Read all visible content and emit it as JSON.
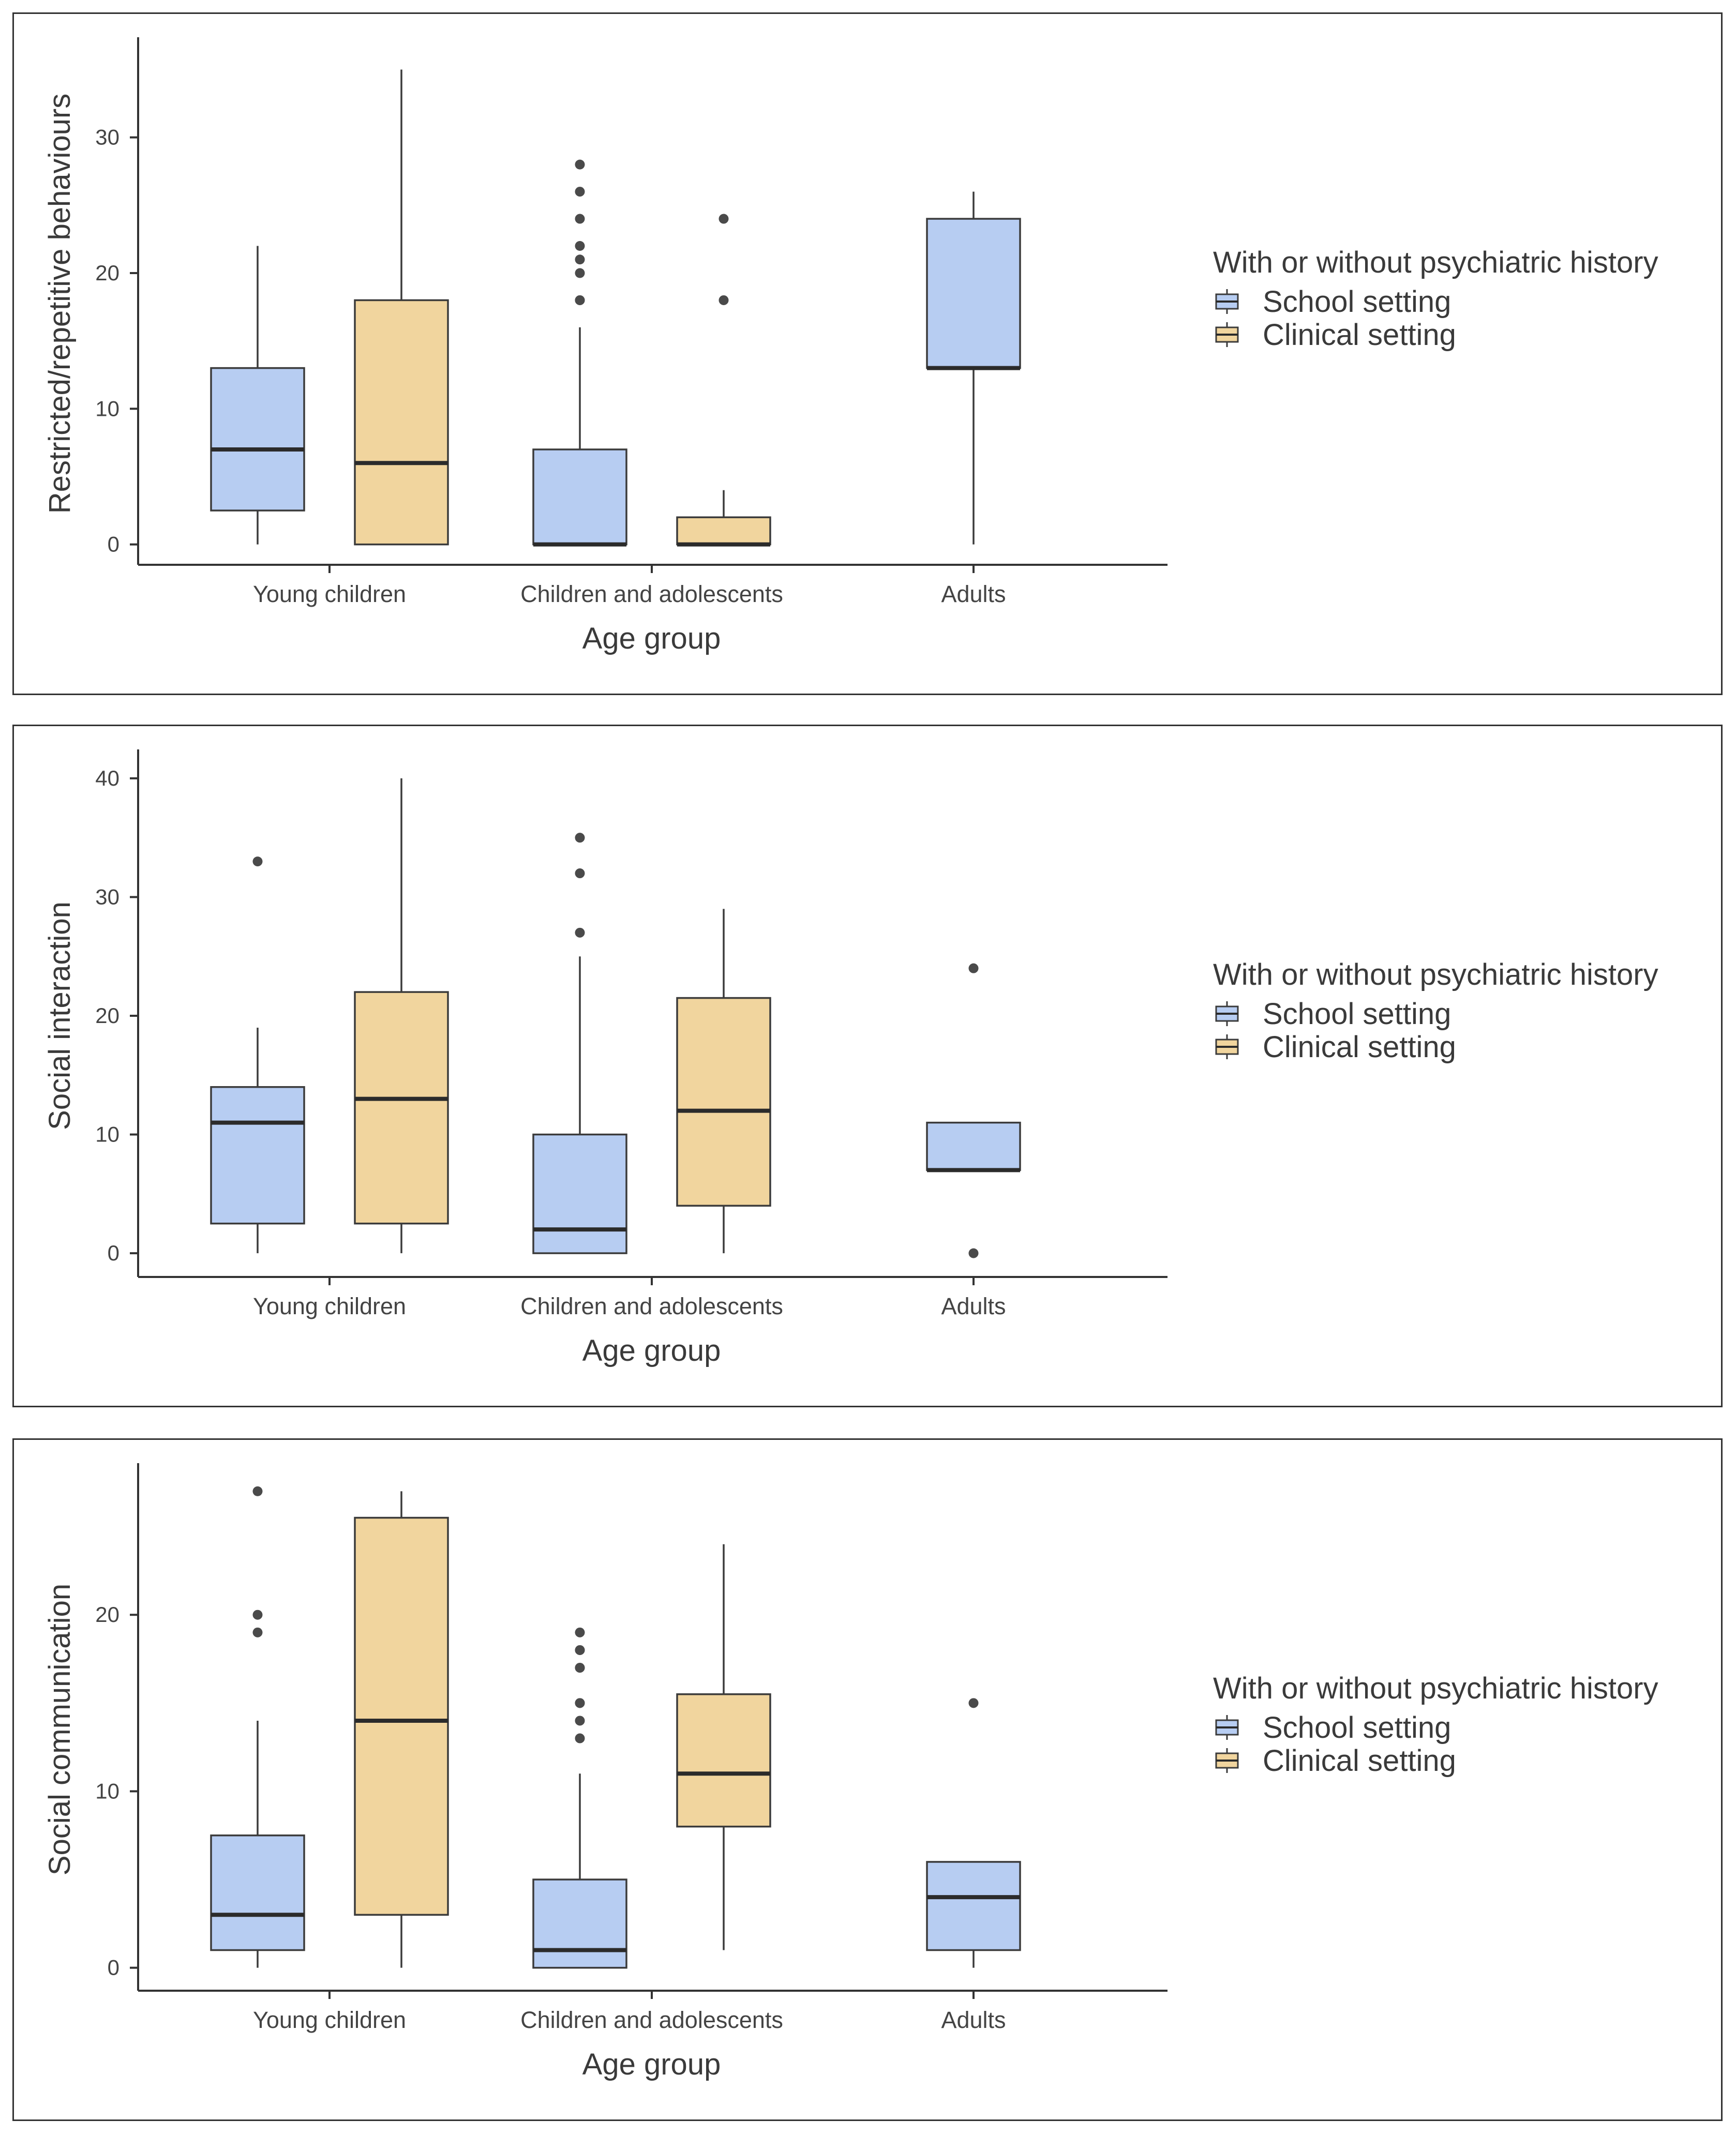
{
  "colors": {
    "school_fill": "#b7cdf2",
    "clinical_fill": "#f1d59e",
    "box_stroke": "#3b3b3b",
    "median": "#2b2b2b",
    "outlier": "#4a4a4a",
    "axis": "#333333",
    "tick_text": "#444444",
    "title_text": "#3a3a3a"
  },
  "chart_data": [
    {
      "type": "boxplot",
      "ylabel": "Restricted/repetitive behaviours",
      "xlabel": "Age group",
      "legend_title": "With or without psychiatric history",
      "legend_position": "right",
      "categories": [
        "Young children",
        "Children and adolescents",
        "Adults"
      ],
      "ylim": [
        -1.5,
        37
      ],
      "yticks": [
        0,
        10,
        20,
        30
      ],
      "series": [
        {
          "name": "School setting",
          "key": "school",
          "boxes": [
            {
              "category": "Young children",
              "whisker_low": 0,
              "q1": 2.5,
              "median": 7,
              "q3": 13,
              "whisker_high": 22,
              "outliers": []
            },
            {
              "category": "Children and adolescents",
              "whisker_low": 0,
              "q1": 0,
              "median": 0,
              "q3": 7,
              "whisker_high": 16,
              "outliers": [
                18,
                18,
                20,
                21,
                22,
                24,
                26,
                28
              ]
            },
            {
              "category": "Adults",
              "whisker_low": 0,
              "q1": 13,
              "median": 13,
              "q3": 24,
              "whisker_high": 26,
              "outliers": []
            }
          ]
        },
        {
          "name": "Clinical setting",
          "key": "clinical",
          "boxes": [
            {
              "category": "Young children",
              "whisker_low": 0,
              "q1": 0,
              "median": 6,
              "q3": 18,
              "whisker_high": 35,
              "outliers": []
            },
            {
              "category": "Children and adolescents",
              "whisker_low": 0,
              "q1": 0,
              "median": 0,
              "q3": 2,
              "whisker_high": 4,
              "outliers": [
                18,
                24
              ]
            }
          ]
        }
      ]
    },
    {
      "type": "boxplot",
      "ylabel": "Social interaction",
      "xlabel": "Age group",
      "legend_title": "With or without psychiatric history",
      "legend_position": "right",
      "categories": [
        "Young children",
        "Children and adolescents",
        "Adults"
      ],
      "ylim": [
        -2,
        42
      ],
      "yticks": [
        0,
        10,
        20,
        30,
        40
      ],
      "series": [
        {
          "name": "School setting",
          "key": "school",
          "boxes": [
            {
              "category": "Young children",
              "whisker_low": 0,
              "q1": 2.5,
              "median": 11,
              "q3": 14,
              "whisker_high": 19,
              "outliers": [
                33
              ]
            },
            {
              "category": "Children and adolescents",
              "whisker_low": 0,
              "q1": 0,
              "median": 2,
              "q3": 10,
              "whisker_high": 25,
              "outliers": [
                27,
                32,
                35
              ]
            },
            {
              "category": "Adults",
              "whisker_low": 7,
              "q1": 7,
              "median": 7,
              "q3": 11,
              "whisker_high": 11,
              "outliers": [
                0,
                24
              ]
            }
          ]
        },
        {
          "name": "Clinical setting",
          "key": "clinical",
          "boxes": [
            {
              "category": "Young children",
              "whisker_low": 0,
              "q1": 2.5,
              "median": 13,
              "q3": 22,
              "whisker_high": 40,
              "outliers": []
            },
            {
              "category": "Children and adolescents",
              "whisker_low": 0,
              "q1": 4,
              "median": 12,
              "q3": 21.5,
              "whisker_high": 29,
              "outliers": []
            }
          ]
        }
      ]
    },
    {
      "type": "boxplot",
      "ylabel": "Social communication",
      "xlabel": "Age group",
      "legend_title": "With or without psychiatric history",
      "legend_position": "right",
      "categories": [
        "Young children",
        "Children and adolescents",
        "Adults"
      ],
      "ylim": [
        -1.3,
        28.3
      ],
      "yticks": [
        0,
        10,
        20
      ],
      "series": [
        {
          "name": "School setting",
          "key": "school",
          "boxes": [
            {
              "category": "Young children",
              "whisker_low": 0,
              "q1": 1,
              "median": 3,
              "q3": 7.5,
              "whisker_high": 14,
              "outliers": [
                19,
                20,
                27
              ]
            },
            {
              "category": "Children and adolescents",
              "whisker_low": 0,
              "q1": 0,
              "median": 1,
              "q3": 5,
              "whisker_high": 11,
              "outliers": [
                13,
                14,
                15,
                15,
                17,
                17,
                18,
                18,
                19
              ]
            },
            {
              "category": "Adults",
              "whisker_low": 0,
              "q1": 1,
              "median": 4,
              "q3": 6,
              "whisker_high": 6,
              "outliers": [
                15
              ]
            }
          ]
        },
        {
          "name": "Clinical setting",
          "key": "clinical",
          "boxes": [
            {
              "category": "Young children",
              "whisker_low": 0,
              "q1": 3,
              "median": 14,
              "q3": 25.5,
              "whisker_high": 27,
              "outliers": []
            },
            {
              "category": "Children and adolescents",
              "whisker_low": 1,
              "q1": 8,
              "median": 11,
              "q3": 15.5,
              "whisker_high": 24,
              "outliers": []
            }
          ]
        }
      ]
    }
  ]
}
